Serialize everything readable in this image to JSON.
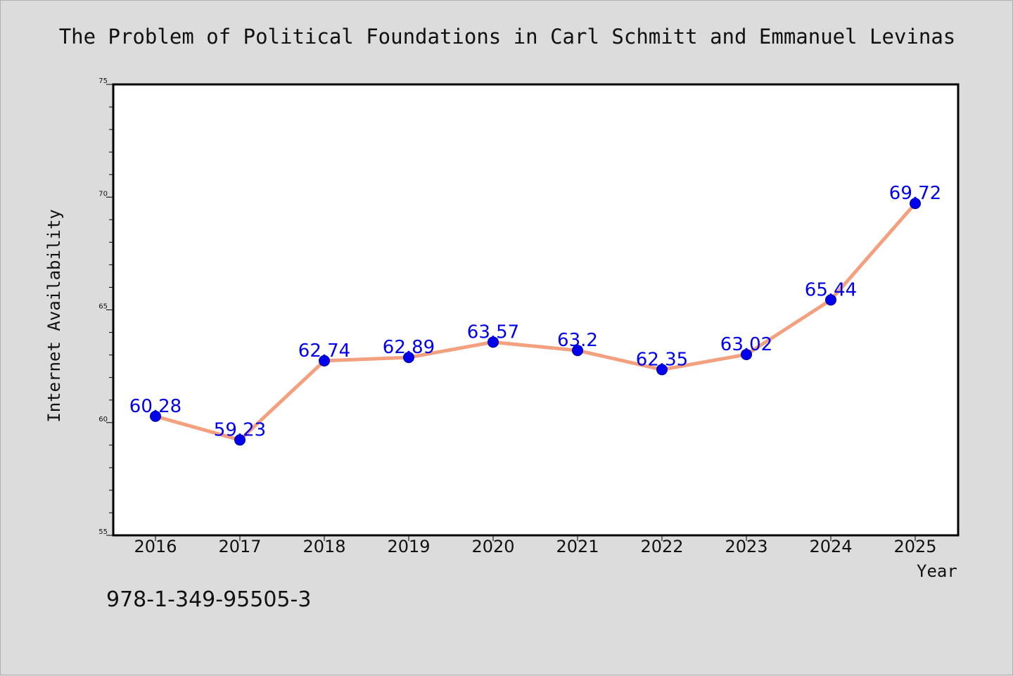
{
  "chart_data": {
    "type": "line",
    "title": "The Problem of Political Foundations in Carl Schmitt and Emmanuel Levinas",
    "xlabel": "Year",
    "ylabel": "Internet Availability",
    "categories": [
      "2016",
      "2017",
      "2018",
      "2019",
      "2020",
      "2021",
      "2022",
      "2023",
      "2024",
      "2025"
    ],
    "values": [
      60.28,
      59.23,
      62.74,
      62.89,
      63.57,
      63.2,
      62.35,
      63.02,
      65.44,
      69.72
    ],
    "data_labels": [
      "60.28",
      "59.23",
      "62.74",
      "62.89",
      "63.57",
      "63.2",
      "62.35",
      "63.02",
      "65.44",
      "69.72"
    ],
    "ylim": [
      55,
      75
    ],
    "yticks": [
      "55",
      "60",
      "65",
      "70",
      "75"
    ],
    "grid": false,
    "line_color": "#f4a07e",
    "marker_color": "#0000ee",
    "label_color": "#0000ee"
  },
  "footer": {
    "isbn": "978-1-349-95505-3"
  }
}
